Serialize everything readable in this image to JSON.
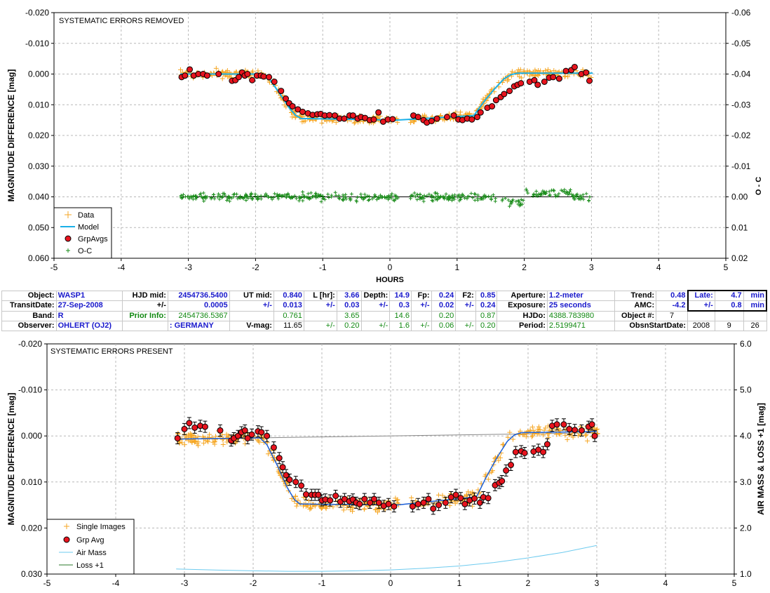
{
  "top_chart": {
    "title": "SYSTEMATIC ERRORS REMOVED",
    "ylabel": "MAGNITUDE DIFFERENCE [mag]",
    "y2label": "O - C",
    "xlabel": "HOURS",
    "xticks": [
      "-5",
      "-4",
      "-3",
      "-2",
      "-1",
      "0",
      "1",
      "2",
      "3",
      "4",
      "5"
    ],
    "yticks": [
      "-0.020",
      "-0.010",
      "0.000",
      "0.010",
      "0.020",
      "0.030",
      "0.040",
      "0.050",
      "0.060"
    ],
    "y2ticks": [
      "-0.06",
      "-0.05",
      "-0.04",
      "-0.03",
      "-0.02",
      "-0.01",
      "0.00",
      "0.01",
      "0.02"
    ],
    "legend": [
      "Data",
      "Model",
      "GrpAvgs",
      "O-C"
    ]
  },
  "bottom_chart": {
    "title": "SYSTEMATIC ERRORS PRESENT",
    "ylabel": "MAGNITUDE DIFFERENCE [mag]",
    "y2label": "AIR MASS & LOSS +1 [mag]",
    "xticks": [
      "-5",
      "-4",
      "-3",
      "-2",
      "-1",
      "0",
      "1",
      "2",
      "3",
      "4",
      "5"
    ],
    "yticks": [
      "-0.020",
      "-0.010",
      "0.000",
      "0.010",
      "0.020",
      "0.030"
    ],
    "y2ticks": [
      "6.0",
      "5.0",
      "4.0",
      "3.0",
      "2.0",
      "1.0"
    ],
    "legend": [
      "Single Images",
      "Grp Avg",
      "Air Mass",
      "Loss +1"
    ]
  },
  "colors": {
    "data": "#f5a623",
    "model": "#1ab0e8",
    "grp_fill": "#e8141e",
    "oc": "#1a8c1a",
    "airmass": "#6ecbef",
    "loss": "#2a7a2a",
    "trend": "#888888"
  },
  "info": {
    "object_label": "Object:",
    "object": "WASP1",
    "hjd_mid_label": "HJD mid:",
    "hjd_mid": "2454736.5400",
    "ut_mid_label": "UT mid:",
    "ut_mid": "0.840",
    "l_hr_label": "L [hr]:",
    "l_hr": "3.66",
    "depth_label": "Depth:",
    "depth": "14.9",
    "fp_label": "Fp:",
    "fp": "0.24",
    "f2_label": "F2:",
    "f2": "0.85",
    "aperture_label": "Aperture:",
    "aperture": "1.2-meter",
    "trend_label": "Trend:",
    "trend": "0.48",
    "late_label": "Late:",
    "late": "4.7",
    "late_unit": "min",
    "transitdate_label": "TransitDate:",
    "transitdate": "27-Sep-2008",
    "pm": "+/-",
    "hjd_err": "0.0005",
    "ut_err": "0.013",
    "l_err": "0.03",
    "depth_err": "0.3",
    "fp_err": "0.02",
    "f2_err": "0.24",
    "exposure_label": "Exposure:",
    "exposure": "25 seconds",
    "amc_label": "AMC:",
    "amc": "-4.2",
    "late_err": "0.8",
    "late_err_unit": "min",
    "band_label": "Band:",
    "band": "R",
    "prior_label": "Prior Info:",
    "prior_hjd": "2454736.5367",
    "prior_ut": "0.761",
    "prior_l": "3.65",
    "prior_depth": "14.6",
    "prior_fp": "0.20",
    "prior_f2": "0.87",
    "hjdo_label": "HJDo:",
    "hjdo": "4388.783980",
    "objnum_label": "Object #:",
    "objnum": "7",
    "observer_label": "Observer:",
    "observer": "OHLERT (OJ2)",
    "country": ": GERMANY",
    "vmag_label": "V-mag:",
    "vmag": "11.65",
    "l_unc": "0.20",
    "depth_unc": "1.6",
    "fp_unc": "0.06",
    "f2_unc": "0.20",
    "period_label": "Period:",
    "period": "2.5199471",
    "obsstart_label": "ObsnStartDate:",
    "obs_year": "2008",
    "obs_month": "9",
    "obs_day": "26"
  },
  "chart_data": [
    {
      "type": "scatter",
      "title": "SYSTEMATIC ERRORS REMOVED",
      "xlabel": "HOURS",
      "ylabel": "MAGNITUDE DIFFERENCE [mag]",
      "y2label": "O - C",
      "xlim": [
        -5,
        5
      ],
      "ylim": [
        -0.02,
        0.06
      ],
      "y_inverted": true,
      "y2lim": [
        -0.06,
        0.02
      ],
      "grid": true,
      "legend_position": "bottom-left",
      "series": [
        {
          "name": "Model",
          "kind": "line",
          "x": [
            -3.12,
            -1.9,
            -1.8,
            -1.65,
            -1.5,
            -1.4,
            -1.32,
            0.1,
            1.25,
            1.3,
            1.4,
            1.55,
            1.7,
            1.8,
            1.9,
            3.02
          ],
          "y": [
            0.0,
            0.0,
            0.0015,
            0.006,
            0.011,
            0.0135,
            0.0145,
            0.015,
            0.0135,
            0.012,
            0.009,
            0.005,
            0.0015,
            0.0002,
            -0.0003,
            -0.0003
          ]
        },
        {
          "name": "GrpAvgs",
          "kind": "points",
          "x": [
            -3.1,
            -3.05,
            -2.98,
            -2.92,
            -2.85,
            -2.78,
            -2.72,
            -2.55,
            -2.35,
            -2.3,
            -2.25,
            -2.2,
            -2.16,
            -2.12,
            -2.05,
            -1.98,
            -1.92,
            -1.88,
            -1.8,
            -1.72,
            -1.62,
            -1.55,
            -1.5,
            -1.45,
            -1.37,
            -1.3,
            -1.22,
            -1.15,
            -1.08,
            -1.03,
            -0.97,
            -0.9,
            -0.82,
            -0.75,
            -0.68,
            -0.6,
            -0.55,
            -0.48,
            -0.43,
            -0.37,
            -0.3,
            -0.24,
            -0.17,
            -0.1,
            -0.03,
            0.04,
            0.35,
            0.42,
            0.5,
            0.55,
            0.62,
            0.7,
            0.85,
            0.95,
            1.02,
            1.08,
            1.15,
            1.22,
            1.3,
            1.35,
            1.45,
            1.52,
            1.58,
            1.65,
            1.7,
            1.78,
            1.85,
            1.9,
            1.95,
            2.08,
            2.15,
            2.2,
            2.3,
            2.37,
            2.43,
            2.52,
            2.62,
            2.7,
            2.75,
            2.85,
            2.92,
            2.97
          ],
          "y": [
            0.001,
            0.0005,
            -0.0015,
            0.0005,
            0.0,
            0.0,
            0.0005,
            0.0,
            0.0022,
            0.002,
            0.001,
            -0.0005,
            0.0005,
            0.0,
            0.002,
            0.0005,
            0.0005,
            0.0008,
            0.001,
            0.0025,
            0.0055,
            0.008,
            0.0095,
            0.0105,
            0.0115,
            0.0123,
            0.0128,
            0.0133,
            0.0131,
            0.013,
            0.0135,
            0.0134,
            0.0135,
            0.0145,
            0.0145,
            0.0135,
            0.0135,
            0.0145,
            0.014,
            0.0143,
            0.015,
            0.0148,
            0.0125,
            0.0155,
            0.0148,
            0.0147,
            0.0135,
            0.014,
            0.015,
            0.0158,
            0.0153,
            0.0145,
            0.014,
            0.0135,
            0.0148,
            0.015,
            0.0145,
            0.0148,
            0.014,
            0.0125,
            0.011,
            0.0105,
            0.0085,
            0.0075,
            0.0065,
            0.0055,
            0.004,
            0.0035,
            0.003,
            0.0025,
            0.002,
            0.0035,
            0.0025,
            0.0012,
            0.001,
            0.0015,
            -0.001,
            -0.0013,
            -0.0023,
            0.0,
            -0.0005,
            0.0022
          ]
        }
      ]
    },
    {
      "type": "scatter",
      "title": "SYSTEMATIC ERRORS PRESENT",
      "ylabel": "MAGNITUDE DIFFERENCE [mag]",
      "y2label": "AIR MASS & LOSS +1 [mag]",
      "xlim": [
        -5,
        5
      ],
      "ylim": [
        -0.02,
        0.03
      ],
      "y_inverted": true,
      "y2lim": [
        1.0,
        6.0
      ],
      "grid": true,
      "legend_position": "bottom-left",
      "series": [
        {
          "name": "Air Mass",
          "kind": "line",
          "axis": "y2",
          "x": [
            -3.12,
            -2.5,
            -2.0,
            -1.5,
            -1.0,
            -0.5,
            0.0,
            0.5,
            1.0,
            1.5,
            2.0,
            2.5,
            3.0
          ],
          "y": [
            1.11,
            1.085,
            1.07,
            1.06,
            1.06,
            1.07,
            1.09,
            1.125,
            1.175,
            1.25,
            1.35,
            1.47,
            1.62
          ]
        },
        {
          "name": "Grp Avg",
          "kind": "points",
          "x": [
            -3.1,
            -3.0,
            -2.93,
            -2.85,
            -2.77,
            -2.7,
            -2.48,
            -2.32,
            -2.28,
            -2.22,
            -2.17,
            -2.12,
            -2.08,
            -2.02,
            -1.93,
            -1.88,
            -1.8,
            -1.7,
            -1.62,
            -1.57,
            -1.52,
            -1.47,
            -1.38,
            -1.3,
            -1.23,
            -1.15,
            -1.1,
            -1.05,
            -1.0,
            -0.95,
            -0.88,
            -0.8,
            -0.73,
            -0.67,
            -0.6,
            -0.55,
            -0.5,
            -0.45,
            -0.38,
            -0.3,
            -0.24,
            -0.17,
            -0.1,
            -0.03,
            0.05,
            0.32,
            0.4,
            0.48,
            0.55,
            0.62,
            0.7,
            0.8,
            0.88,
            0.95,
            1.02,
            1.08,
            1.15,
            1.22,
            1.3,
            1.35,
            1.42,
            1.52,
            1.58,
            1.62,
            1.68,
            1.75,
            1.82,
            1.9,
            1.95,
            2.08,
            2.15,
            2.22,
            2.28,
            2.35,
            2.42,
            2.52,
            2.6,
            2.68,
            2.78,
            2.88,
            2.93,
            2.97
          ],
          "y": [
            0.0005,
            -0.0015,
            -0.0028,
            -0.0018,
            -0.0022,
            -0.002,
            -0.0012,
            0.001,
            0.0005,
            0.0,
            -0.0008,
            -0.0012,
            0.0005,
            -0.0003,
            -0.001,
            -0.0008,
            0.0,
            0.0025,
            0.0048,
            0.0068,
            0.0085,
            0.0095,
            0.01,
            0.0108,
            0.0127,
            0.0128,
            0.0128,
            0.0128,
            0.014,
            0.0138,
            0.014,
            0.013,
            0.0143,
            0.0137,
            0.0142,
            0.0138,
            0.0145,
            0.0148,
            0.0137,
            0.0145,
            0.0137,
            0.0145,
            0.0152,
            0.0148,
            0.0153,
            0.0153,
            0.0148,
            0.0145,
            0.0137,
            0.0158,
            0.015,
            0.0145,
            0.0133,
            0.0128,
            0.0135,
            0.0148,
            0.014,
            0.0136,
            0.0145,
            0.0133,
            0.0135,
            0.0107,
            0.0102,
            0.0098,
            0.0075,
            0.0063,
            0.0035,
            0.0033,
            0.0037,
            0.0034,
            0.003,
            0.0035,
            0.0018,
            -0.0022,
            -0.0025,
            -0.0025,
            -0.0015,
            -0.0013,
            -0.0012,
            -0.002,
            -0.0025,
            0.0
          ]
        }
      ]
    }
  ]
}
